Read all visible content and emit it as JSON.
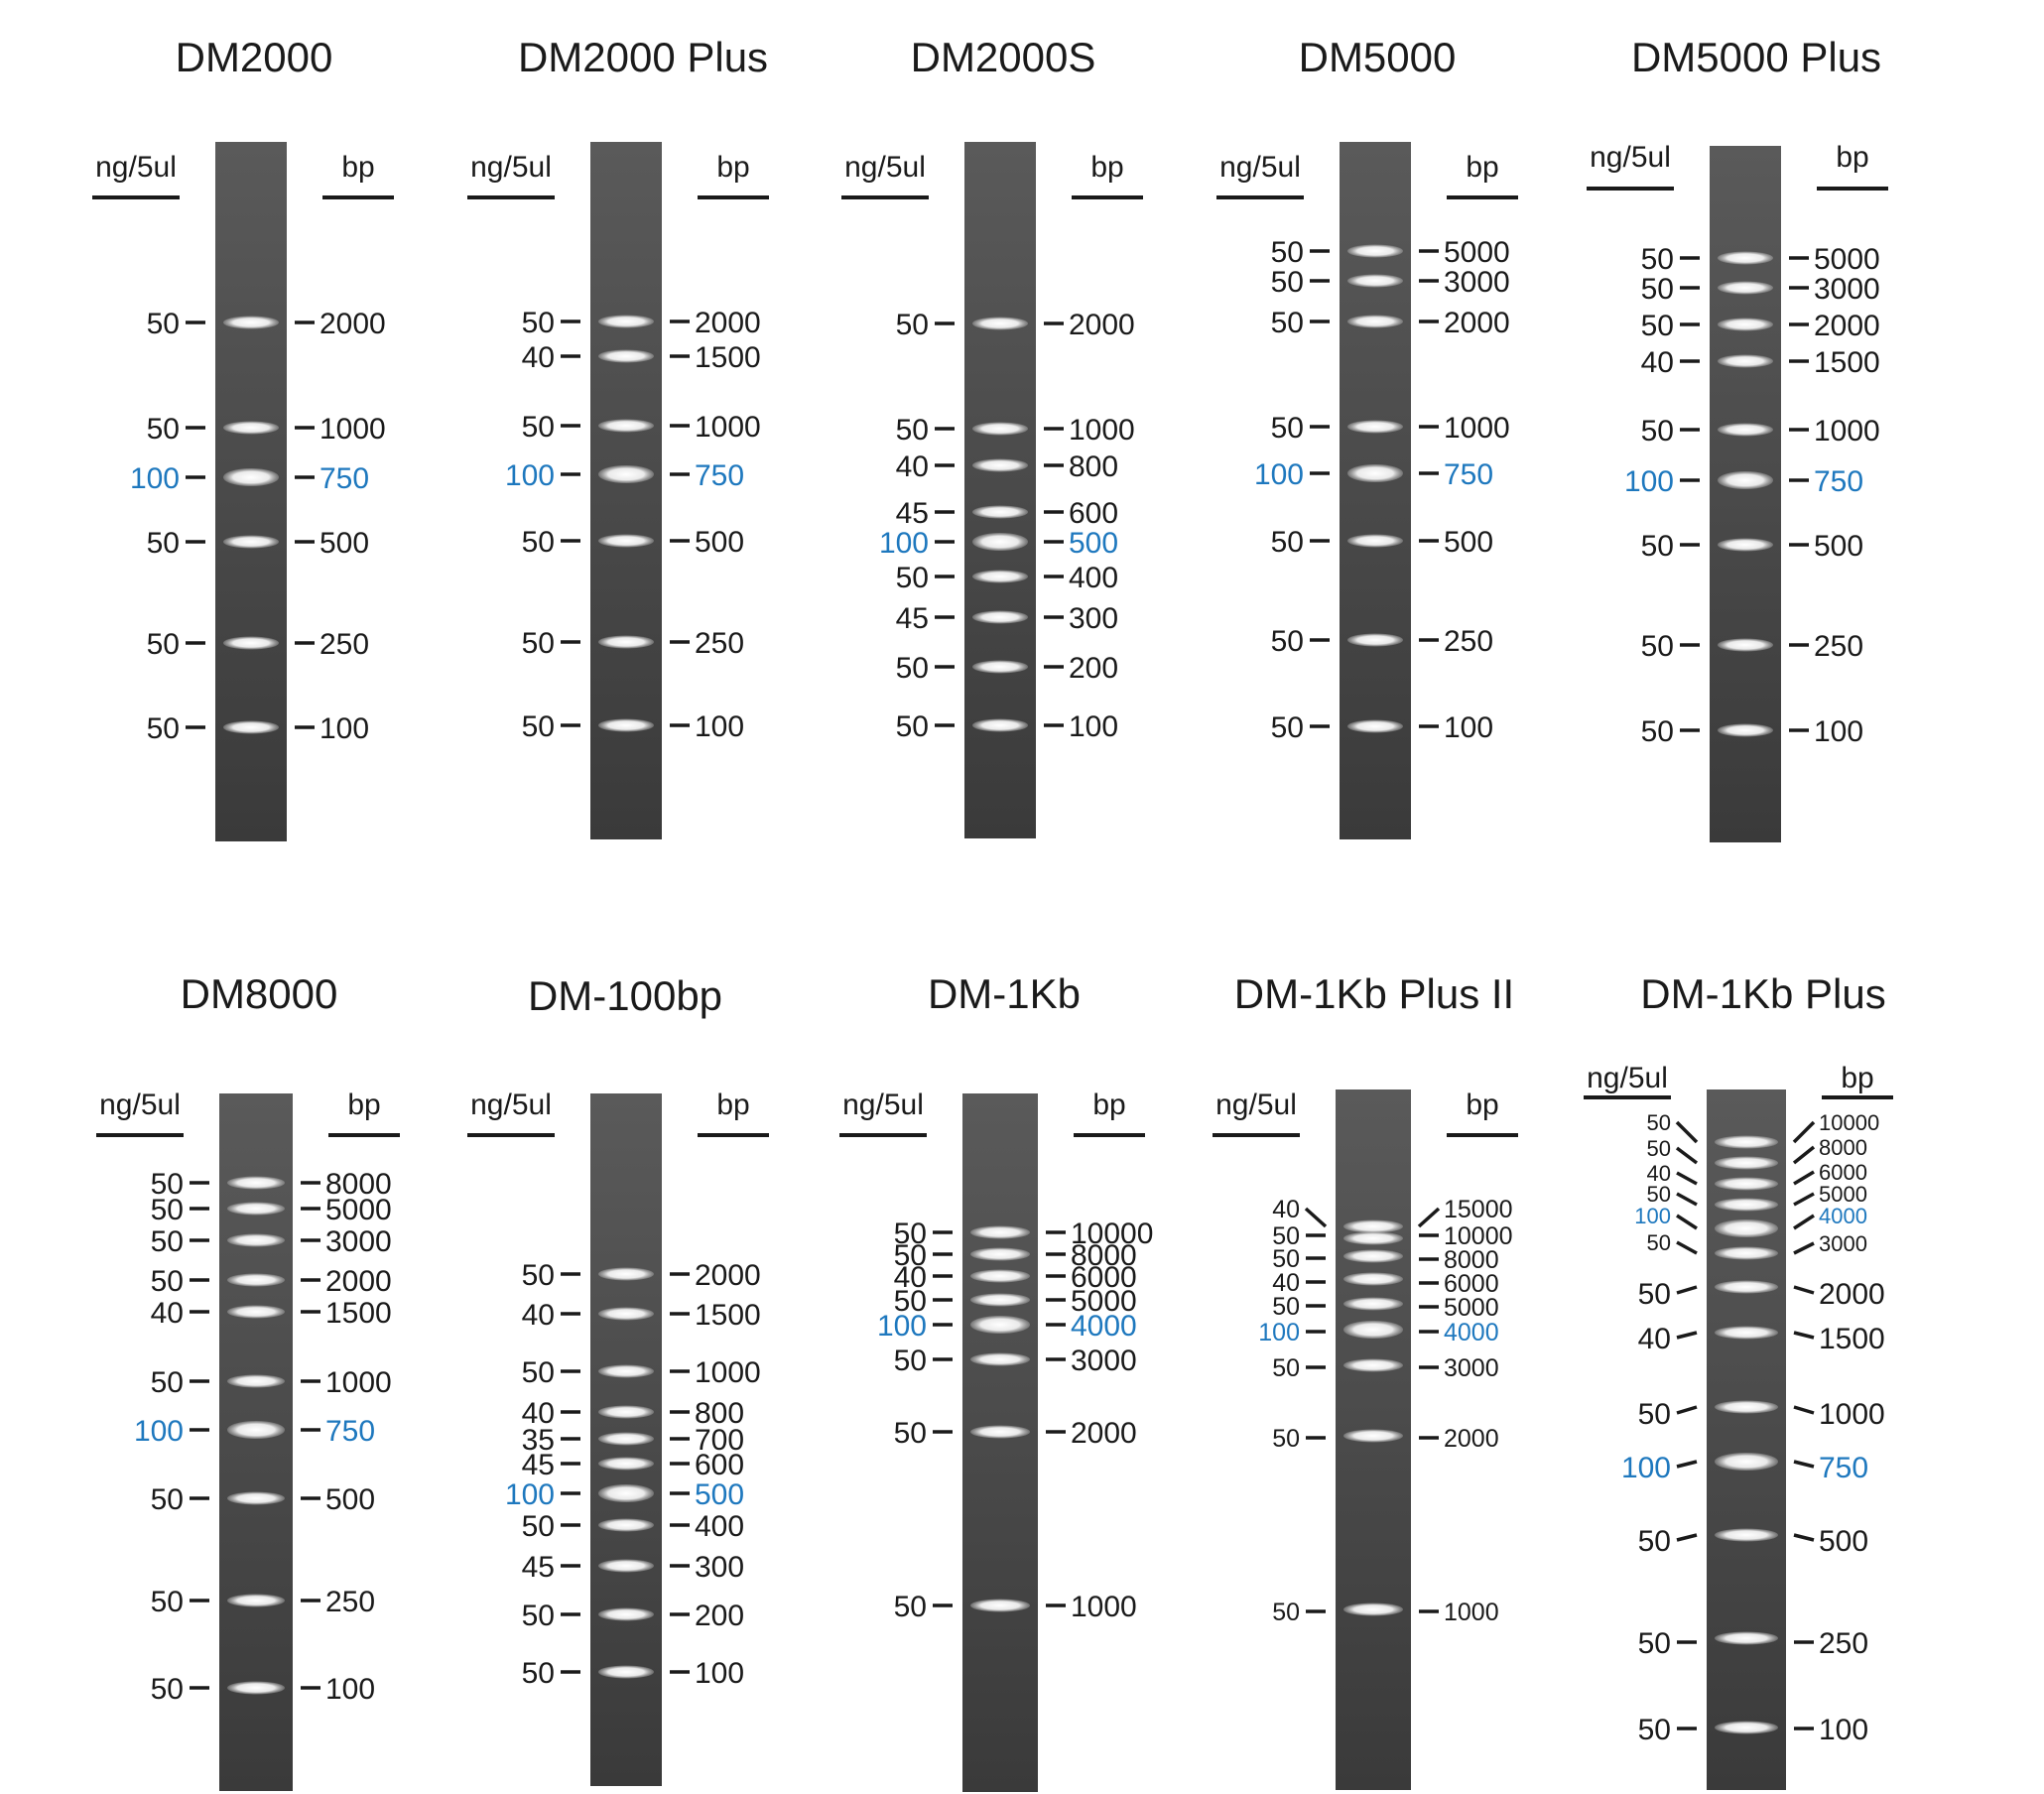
{
  "figure": {
    "colors": {
      "text": "#1a1a1a",
      "highlight": "#1e78be",
      "gel_top": "#5a5a5a",
      "gel_bottom": "#3a3a3a",
      "band": "#ffffff"
    },
    "ladders": [
      {
        "name": "DM2000",
        "ng_header": "ng/5ul",
        "bp_header": "bp",
        "bands": [
          {
            "ng": "50",
            "bp": "2000"
          },
          {
            "ng": "50",
            "bp": "1000"
          },
          {
            "ng": "100",
            "bp": "750",
            "highlight": true
          },
          {
            "ng": "50",
            "bp": "500"
          },
          {
            "ng": "50",
            "bp": "250"
          },
          {
            "ng": "50",
            "bp": "100"
          }
        ]
      },
      {
        "name": "DM2000 Plus",
        "ng_header": "ng/5ul",
        "bp_header": "bp",
        "bands": [
          {
            "ng": "50",
            "bp": "2000"
          },
          {
            "ng": "40",
            "bp": "1500"
          },
          {
            "ng": "50",
            "bp": "1000"
          },
          {
            "ng": "100",
            "bp": "750",
            "highlight": true
          },
          {
            "ng": "50",
            "bp": "500"
          },
          {
            "ng": "50",
            "bp": "250"
          },
          {
            "ng": "50",
            "bp": "100"
          }
        ]
      },
      {
        "name": "DM2000S",
        "ng_header": "ng/5ul",
        "bp_header": "bp",
        "bands": [
          {
            "ng": "50",
            "bp": "2000"
          },
          {
            "ng": "50",
            "bp": "1000"
          },
          {
            "ng": "40",
            "bp": "800"
          },
          {
            "ng": "45",
            "bp": "600"
          },
          {
            "ng": "100",
            "bp": "500",
            "highlight": true
          },
          {
            "ng": "50",
            "bp": "400"
          },
          {
            "ng": "45",
            "bp": "300"
          },
          {
            "ng": "50",
            "bp": "200"
          },
          {
            "ng": "50",
            "bp": "100"
          }
        ]
      },
      {
        "name": "DM5000",
        "ng_header": "ng/5ul",
        "bp_header": "bp",
        "bands": [
          {
            "ng": "50",
            "bp": "5000"
          },
          {
            "ng": "50",
            "bp": "3000"
          },
          {
            "ng": "50",
            "bp": "2000"
          },
          {
            "ng": "50",
            "bp": "1000"
          },
          {
            "ng": "100",
            "bp": "750",
            "highlight": true
          },
          {
            "ng": "50",
            "bp": "500"
          },
          {
            "ng": "50",
            "bp": "250"
          },
          {
            "ng": "50",
            "bp": "100"
          }
        ]
      },
      {
        "name": "DM5000 Plus",
        "ng_header": "ng/5ul",
        "bp_header": "bp",
        "bands": [
          {
            "ng": "50",
            "bp": "5000"
          },
          {
            "ng": "50",
            "bp": "3000"
          },
          {
            "ng": "50",
            "bp": "2000"
          },
          {
            "ng": "40",
            "bp": "1500"
          },
          {
            "ng": "50",
            "bp": "1000"
          },
          {
            "ng": "100",
            "bp": "750",
            "highlight": true
          },
          {
            "ng": "50",
            "bp": "500"
          },
          {
            "ng": "50",
            "bp": "250"
          },
          {
            "ng": "50",
            "bp": "100"
          }
        ]
      },
      {
        "name": "DM8000",
        "ng_header": "ng/5ul",
        "bp_header": "bp",
        "bands": [
          {
            "ng": "50",
            "bp": "8000"
          },
          {
            "ng": "50",
            "bp": "5000"
          },
          {
            "ng": "50",
            "bp": "3000"
          },
          {
            "ng": "50",
            "bp": "2000"
          },
          {
            "ng": "40",
            "bp": "1500"
          },
          {
            "ng": "50",
            "bp": "1000"
          },
          {
            "ng": "100",
            "bp": "750",
            "highlight": true
          },
          {
            "ng": "50",
            "bp": "500"
          },
          {
            "ng": "50",
            "bp": "250"
          },
          {
            "ng": "50",
            "bp": "100"
          }
        ]
      },
      {
        "name": "DM-100bp",
        "ng_header": "ng/5ul",
        "bp_header": "bp",
        "bands": [
          {
            "ng": "50",
            "bp": "2000"
          },
          {
            "ng": "40",
            "bp": "1500"
          },
          {
            "ng": "50",
            "bp": "1000"
          },
          {
            "ng": "40",
            "bp": "800"
          },
          {
            "ng": "35",
            "bp": "700"
          },
          {
            "ng": "45",
            "bp": "600"
          },
          {
            "ng": "100",
            "bp": "500",
            "highlight": true
          },
          {
            "ng": "50",
            "bp": "400"
          },
          {
            "ng": "45",
            "bp": "300"
          },
          {
            "ng": "50",
            "bp": "200"
          },
          {
            "ng": "50",
            "bp": "100"
          }
        ]
      },
      {
        "name": "DM-1Kb",
        "ng_header": "ng/5ul",
        "bp_header": "bp",
        "bands": [
          {
            "ng": "50",
            "bp": "10000"
          },
          {
            "ng": "50",
            "bp": "8000"
          },
          {
            "ng": "40",
            "bp": "6000"
          },
          {
            "ng": "50",
            "bp": "5000"
          },
          {
            "ng": "100",
            "bp": "4000",
            "highlight": true
          },
          {
            "ng": "50",
            "bp": "3000"
          },
          {
            "ng": "50",
            "bp": "2000"
          },
          {
            "ng": "50",
            "bp": "1000"
          }
        ]
      },
      {
        "name": "DM-1Kb Plus II",
        "ng_header": "ng/5ul",
        "bp_header": "bp",
        "bands": [
          {
            "ng": "40",
            "bp": "15000"
          },
          {
            "ng": "50",
            "bp": "10000"
          },
          {
            "ng": "50",
            "bp": "8000"
          },
          {
            "ng": "40",
            "bp": "6000"
          },
          {
            "ng": "50",
            "bp": "5000"
          },
          {
            "ng": "100",
            "bp": "4000",
            "highlight": true
          },
          {
            "ng": "50",
            "bp": "3000"
          },
          {
            "ng": "50",
            "bp": "2000"
          },
          {
            "ng": "50",
            "bp": "1000"
          }
        ]
      },
      {
        "name": "DM-1Kb Plus",
        "ng_header": "ng/5ul",
        "bp_header": "bp",
        "bands": [
          {
            "ng": "50",
            "bp": "10000"
          },
          {
            "ng": "50",
            "bp": "8000"
          },
          {
            "ng": "40",
            "bp": "6000"
          },
          {
            "ng": "50",
            "bp": "5000"
          },
          {
            "ng": "100",
            "bp": "4000",
            "highlight": true
          },
          {
            "ng": "50",
            "bp": "3000"
          },
          {
            "ng": "50",
            "bp": "2000"
          },
          {
            "ng": "40",
            "bp": "1500"
          },
          {
            "ng": "50",
            "bp": "1000"
          },
          {
            "ng": "100",
            "bp": "750",
            "highlight": true
          },
          {
            "ng": "50",
            "bp": "500"
          },
          {
            "ng": "50",
            "bp": "250"
          },
          {
            "ng": "50",
            "bp": "100"
          }
        ]
      }
    ]
  }
}
